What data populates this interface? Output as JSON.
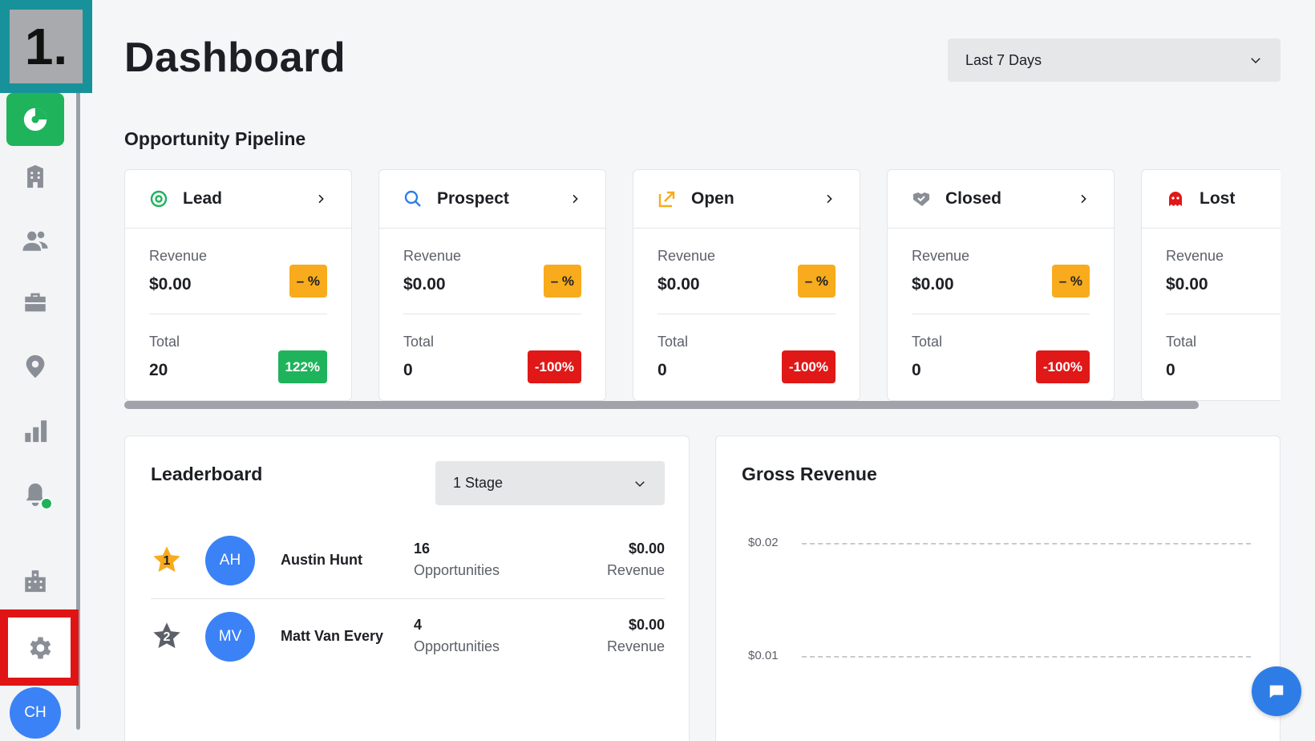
{
  "step_marker": "1.",
  "sidebar": {
    "items": [
      {
        "name": "dashboard",
        "icon": "pie-chart-icon",
        "active": true
      },
      {
        "name": "companies",
        "icon": "building-icon"
      },
      {
        "name": "contacts",
        "icon": "contacts-icon"
      },
      {
        "name": "opportunities",
        "icon": "briefcase-icon"
      },
      {
        "name": "locations",
        "icon": "map-pin-icon"
      },
      {
        "name": "reports",
        "icon": "bar-chart-icon"
      },
      {
        "name": "notifications",
        "icon": "bell-icon"
      },
      {
        "name": "organization",
        "icon": "org-building-icon"
      },
      {
        "name": "settings",
        "icon": "gear-icon",
        "highlighted": true
      }
    ],
    "user_initials": "CH",
    "accent_color": "#1fb35c"
  },
  "header": {
    "title": "Dashboard",
    "date_range": "Last 7 Days"
  },
  "pipeline": {
    "title": "Opportunity Pipeline",
    "stages": [
      {
        "name": "Lead",
        "icon": "target-icon",
        "revenue_label": "Revenue",
        "revenue": "$0.00",
        "revenue_change": "– %",
        "total_label": "Total",
        "total": "20",
        "total_change": "122%"
      },
      {
        "name": "Prospect",
        "icon": "search-icon",
        "revenue_label": "Revenue",
        "revenue": "$0.00",
        "revenue_change": "– %",
        "total_label": "Total",
        "total": "0",
        "total_change": "-100%"
      },
      {
        "name": "Open",
        "icon": "external-arrow-icon",
        "revenue_label": "Revenue",
        "revenue": "$0.00",
        "revenue_change": "– %",
        "total_label": "Total",
        "total": "0",
        "total_change": "-100%"
      },
      {
        "name": "Closed",
        "icon": "handshake-icon",
        "revenue_label": "Revenue",
        "revenue": "$0.00",
        "revenue_change": "– %",
        "total_label": "Total",
        "total": "0",
        "total_change": "-100%"
      },
      {
        "name": "Lost",
        "icon": "ghost-icon",
        "revenue_label": "Revenue",
        "revenue": "$0.00",
        "total_label": "Total",
        "total": "0"
      }
    ]
  },
  "leaderboard": {
    "title": "Leaderboard",
    "filter": "1 Stage",
    "rows": [
      {
        "rank": "1",
        "initials": "AH",
        "name": "Austin Hunt",
        "count": "16",
        "count_label": "Opportunities",
        "revenue": "$0.00",
        "revenue_label": "Revenue"
      },
      {
        "rank": "2",
        "initials": "MV",
        "name": "Matt Van Every",
        "count": "4",
        "count_label": "Opportunities",
        "revenue": "$0.00",
        "revenue_label": "Revenue"
      }
    ]
  },
  "gross_revenue": {
    "title": "Gross Revenue",
    "y_ticks": [
      "$0.02",
      "$0.01"
    ]
  },
  "colors": {
    "neutral_badge": "#f8ab1c",
    "up_badge": "#1fb35c",
    "down_badge": "#e01818",
    "avatar": "#3b82f6"
  }
}
